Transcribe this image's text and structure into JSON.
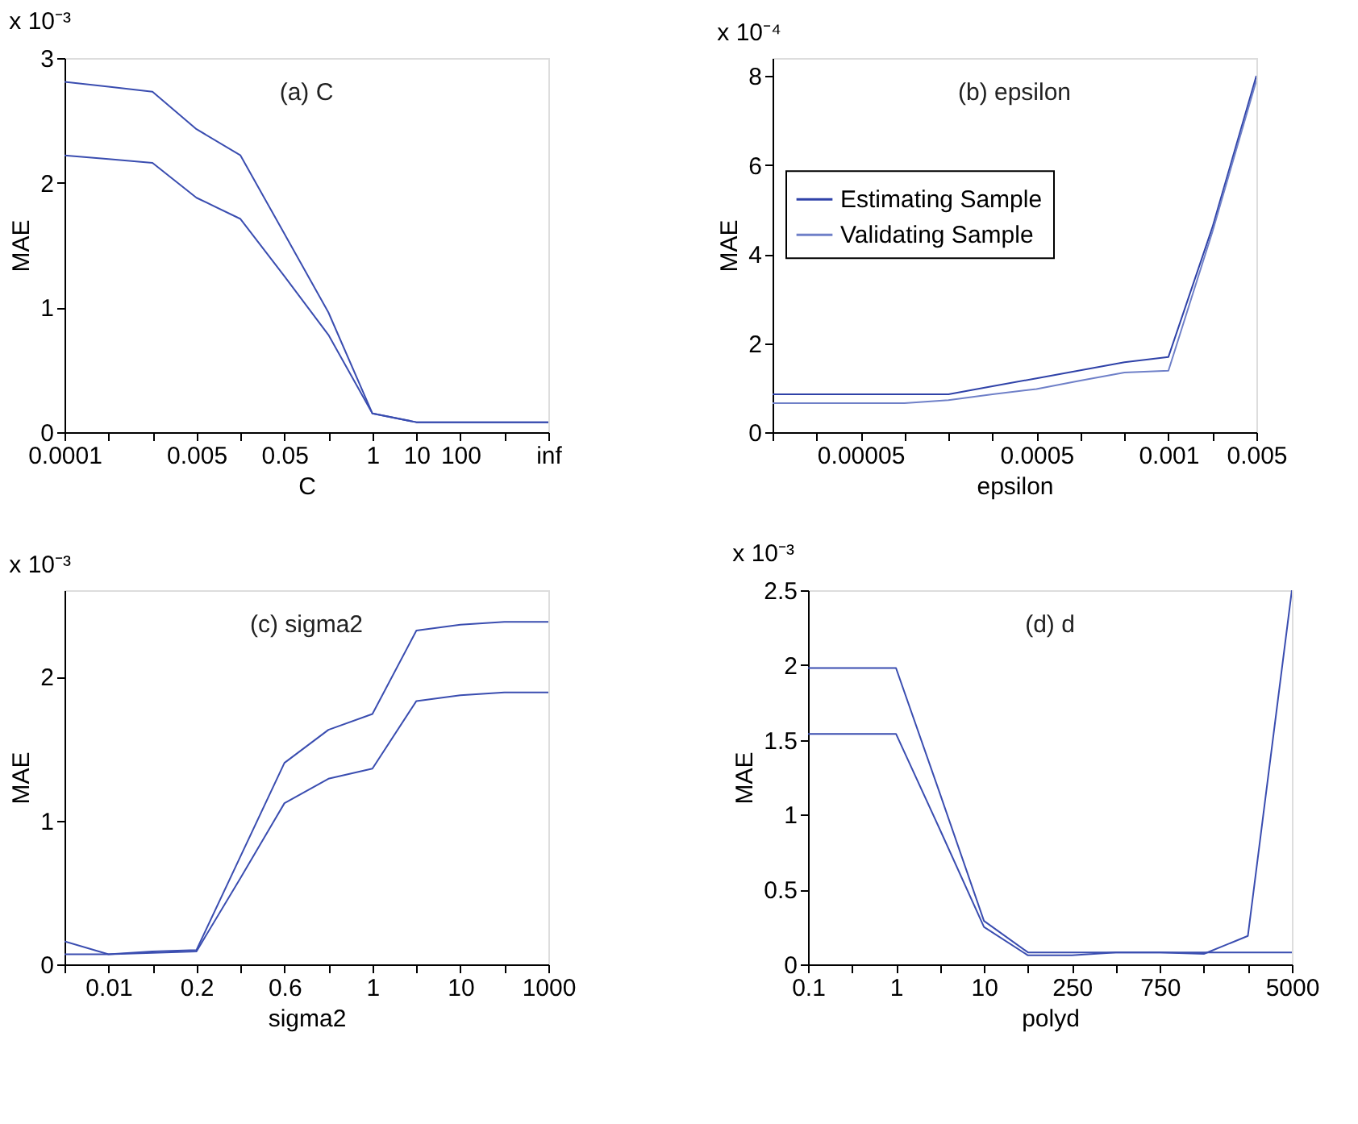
{
  "chart_data": [
    {
      "type": "line",
      "title": "(a)  C",
      "xlabel": "C",
      "ylabel": "MAE",
      "annotations": [
        "x 10⁻³"
      ],
      "ylim": [
        0,
        3
      ],
      "yticks": [
        0,
        1,
        2,
        3
      ],
      "categories": [
        "0.0001",
        null,
        null,
        "0.005",
        null,
        "0.05",
        null,
        "1",
        "10",
        "100",
        null,
        "inf"
      ],
      "grid": false,
      "line_style": "solid",
      "series": [
        {
          "color": "#3a4db0",
          "values": [
            2.81,
            2.77,
            2.73,
            2.43,
            2.22,
            1.59,
            0.96,
            0.15,
            0.08,
            0.08,
            0.08,
            0.08
          ]
        },
        {
          "color": "#3a4db0",
          "values": [
            2.22,
            2.19,
            2.16,
            1.88,
            1.71,
            1.25,
            0.78,
            0.15,
            0.08,
            0.08,
            0.08,
            0.08
          ]
        }
      ]
    },
    {
      "type": "line",
      "title": "(b)  epsilon",
      "xlabel": "epsilon",
      "ylabel": "MAE",
      "annotations": [
        "x 10⁻⁴"
      ],
      "ylim": [
        0,
        8.4
      ],
      "yticks": [
        0,
        2,
        4,
        6,
        8
      ],
      "categories": [
        null,
        null,
        "0.00005",
        null,
        null,
        null,
        "0.0005",
        null,
        null,
        "0.001",
        null,
        "0.005"
      ],
      "grid": false,
      "legend": "left",
      "line_style": "solid",
      "series": [
        {
          "name": "Estimating Sample",
          "color": "#2f42a8",
          "values": [
            0.85,
            0.85,
            0.85,
            0.85,
            0.85,
            1.03,
            1.21,
            1.39,
            1.57,
            1.69,
            4.6,
            8.0
          ]
        },
        {
          "name": "Validating Sample",
          "color": "#6f80c8",
          "values": [
            0.65,
            0.65,
            0.65,
            0.65,
            0.72,
            0.85,
            0.97,
            1.16,
            1.34,
            1.38,
            4.5,
            7.9
          ]
        }
      ]
    },
    {
      "type": "line",
      "title": "(c)  sigma2",
      "xlabel": "sigma2",
      "ylabel": "MAE",
      "annotations": [
        "x 10⁻³"
      ],
      "ylim": [
        0,
        2.6
      ],
      "yticks": [
        0,
        1,
        2
      ],
      "categories": [
        null,
        "0.01",
        null,
        "0.2",
        null,
        "0.6",
        null,
        "1",
        null,
        "10",
        null,
        "1000"
      ],
      "grid": false,
      "line_style": "solid",
      "series": [
        {
          "color": "#3a4db0",
          "values": [
            0.16,
            0.07,
            0.09,
            0.1,
            0.75,
            1.4,
            1.63,
            1.74,
            2.32,
            2.36,
            2.38,
            2.38
          ]
        },
        {
          "color": "#3a4db0",
          "values": [
            0.07,
            0.07,
            0.08,
            0.09,
            0.6,
            1.12,
            1.29,
            1.36,
            1.83,
            1.87,
            1.89,
            1.89
          ]
        }
      ]
    },
    {
      "type": "line",
      "title": "(d)  d",
      "xlabel": "polyd",
      "ylabel": "MAE",
      "annotations": [
        "x 10⁻³"
      ],
      "ylim": [
        0,
        2.5
      ],
      "yticks": [
        0,
        0.5,
        1,
        1.5,
        2,
        2.5
      ],
      "categories": [
        "0.1",
        null,
        "1",
        null,
        "10",
        null,
        "250",
        null,
        "750",
        null,
        null,
        "5000"
      ],
      "grid": false,
      "line_style": "solid",
      "series": [
        {
          "color": "#3a4db0",
          "values": [
            1.98,
            1.98,
            1.98,
            1.14,
            0.29,
            0.08,
            0.08,
            0.08,
            0.08,
            0.08,
            0.08,
            0.08
          ]
        },
        {
          "color": "#3a4db0",
          "values": [
            1.54,
            1.54,
            1.54,
            0.9,
            0.25,
            0.06,
            0.06,
            0.08,
            0.08,
            0.07,
            0.19,
            2.5
          ]
        }
      ]
    }
  ]
}
